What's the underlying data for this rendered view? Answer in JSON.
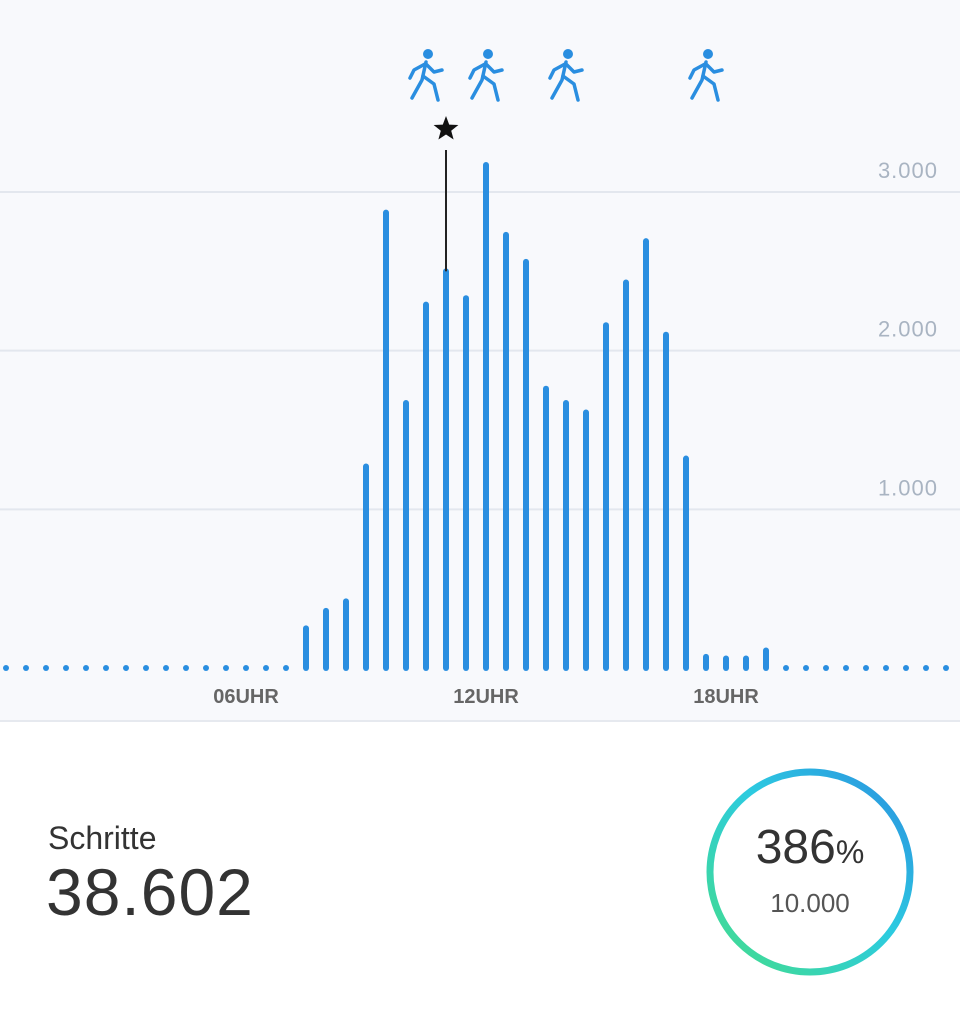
{
  "chart_data": {
    "type": "bar",
    "x_unit": "hour",
    "x": [
      0,
      0.5,
      1,
      1.5,
      2,
      2.5,
      3,
      3.5,
      4,
      4.5,
      5,
      5.5,
      6,
      6.5,
      7,
      7.5,
      8,
      8.5,
      9,
      9.5,
      10,
      10.5,
      11,
      11.5,
      12,
      12.5,
      13,
      13.5,
      14,
      14.5,
      15,
      15.5,
      16,
      16.5,
      17,
      17.5,
      18,
      18.5,
      19,
      19.5,
      20,
      20.5,
      21,
      21.5,
      22,
      22.5,
      23,
      23.5
    ],
    "values": [
      0,
      0,
      0,
      0,
      0,
      0,
      0,
      0,
      0,
      0,
      0,
      0,
      0,
      0,
      0,
      250,
      360,
      420,
      1270,
      2870,
      1670,
      2290,
      2500,
      2330,
      3170,
      2730,
      2560,
      1760,
      1670,
      1610,
      2160,
      2430,
      2690,
      2100,
      1320,
      70,
      60,
      60,
      110,
      0,
      0,
      0,
      0,
      0,
      0,
      0,
      0,
      0
    ],
    "yticks": [
      "1.000",
      "2.000",
      "3.000"
    ],
    "ytick_values": [
      1000,
      2000,
      3000
    ],
    "xticks": [
      "06UHR",
      "12UHR",
      "18UHR"
    ],
    "xtick_values": [
      6,
      12,
      18
    ],
    "ylim": [
      0,
      3300
    ],
    "grid": true,
    "highlight_index": 22,
    "color": "#2a8ee0"
  },
  "activity_icons": [
    {
      "name": "walking-icon",
      "hour": 10.5
    },
    {
      "name": "walking-icon",
      "hour": 12
    },
    {
      "name": "walking-icon",
      "hour": 14
    },
    {
      "name": "walking-icon",
      "hour": 17.5
    }
  ],
  "highlight_marker": {
    "icon": "star-icon"
  },
  "stats": {
    "label": "Schritte",
    "value": "38.602",
    "goal_percent": "386",
    "goal_percent_sign": "%",
    "goal_target": "10.000",
    "goal_fraction": 3.86
  },
  "colors": {
    "bar": "#2a8ee0",
    "icon": "#2a8ee0",
    "tick_label": "#a9b4c2",
    "xtick_label": "#666666",
    "ring_start": "#44dd88",
    "ring_end": "#2a8ee0"
  }
}
